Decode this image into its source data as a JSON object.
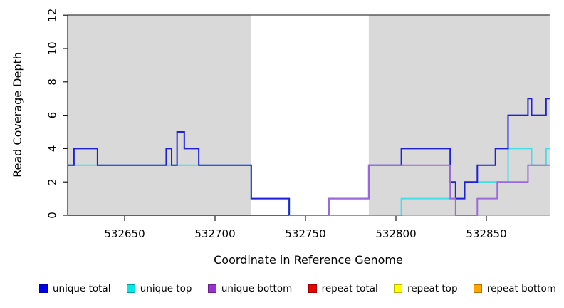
{
  "chart_data": {
    "type": "line",
    "subtype": "step-coverage",
    "title": "",
    "xlabel": "Coordinate in Reference Genome",
    "ylabel": "Read Coverage Depth",
    "xlim": [
      532618,
      532885
    ],
    "ylim": [
      0,
      12
    ],
    "x_ticks": [
      532650,
      532700,
      532750,
      532800,
      532850
    ],
    "y_ticks": [
      0,
      2,
      4,
      6,
      8,
      10,
      12
    ],
    "grid": false,
    "panel_background": "#ffffff",
    "shaded_regions": [
      {
        "x1": 532618,
        "x2": 532720,
        "color": "#d9d9d9"
      },
      {
        "x1": 532785,
        "x2": 532885,
        "color": "#d9d9d9"
      }
    ],
    "series": [
      {
        "name": "repeat bottom",
        "color": "#ffa200",
        "width": 1.8,
        "steps": [
          [
            532804,
            0
          ],
          [
            532885,
            0
          ]
        ]
      },
      {
        "name": "repeat top",
        "color": "#ffff33",
        "width": 1.6,
        "steps": [
          [
            532764,
            0
          ],
          [
            532804,
            0
          ]
        ]
      },
      {
        "name": "unique top",
        "color": "#45dde6",
        "width": 2,
        "steps": [
          [
            532618,
            3
          ],
          [
            532720,
            1
          ],
          [
            532741,
            0
          ],
          [
            532803,
            1
          ],
          [
            532838,
            2
          ],
          [
            532862,
            4
          ],
          [
            532875,
            3
          ],
          [
            532883,
            4
          ],
          [
            532885,
            4
          ]
        ]
      },
      {
        "name": "unique total",
        "color": "#2020d8",
        "width": 2,
        "steps": [
          [
            532618,
            3
          ],
          [
            532622,
            4
          ],
          [
            532635,
            3
          ],
          [
            532673,
            4
          ],
          [
            532676,
            3
          ],
          [
            532679,
            5
          ],
          [
            532683,
            4
          ],
          [
            532691,
            3
          ],
          [
            532720,
            1
          ],
          [
            532741,
            0
          ],
          [
            532763,
            1
          ],
          [
            532785,
            3
          ],
          [
            532803,
            4
          ],
          [
            532830,
            2
          ],
          [
            532833,
            1
          ],
          [
            532838,
            2
          ],
          [
            532845,
            3
          ],
          [
            532855,
            4
          ],
          [
            532862,
            6
          ],
          [
            532873,
            7
          ],
          [
            532875,
            6
          ],
          [
            532883,
            7
          ],
          [
            532885,
            7
          ]
        ]
      },
      {
        "name": "unique bottom",
        "color": "#9b6bd8",
        "width": 2,
        "steps": [
          [
            532618,
            0
          ],
          [
            532763,
            1
          ],
          [
            532785,
            3
          ],
          [
            532830,
            1
          ],
          [
            532833,
            0
          ],
          [
            532845,
            1
          ],
          [
            532856,
            2
          ],
          [
            532873,
            3
          ],
          [
            532885,
            3
          ]
        ]
      },
      {
        "name": "repeat total",
        "color": "#e0192d",
        "width": 1.6,
        "steps": [
          [
            532618,
            0
          ],
          [
            532741,
            0
          ]
        ]
      }
    ],
    "overlap_segments": [
      {
        "x1": 532764,
        "x2": 532804,
        "depth": 0,
        "color": "#5fb86a",
        "note": "repeat top (yellow) drawn over unique top (cyan) appears green"
      }
    ],
    "legend_position": "bottom"
  },
  "legend": {
    "items": [
      {
        "label": "unique total",
        "fill": "#0000ee",
        "border": "#0000a8"
      },
      {
        "label": "unique top",
        "fill": "#00e8e8",
        "border": "#00a0a0"
      },
      {
        "label": "unique bottom",
        "fill": "#9a30d0",
        "border": "#6a1f92"
      },
      {
        "label": "repeat total",
        "fill": "#ee0000",
        "border": "#a00000"
      },
      {
        "label": "repeat top",
        "fill": "#ffff00",
        "border": "#b8b800"
      },
      {
        "label": "repeat bottom",
        "fill": "#ffa500",
        "border": "#b87400"
      }
    ]
  }
}
